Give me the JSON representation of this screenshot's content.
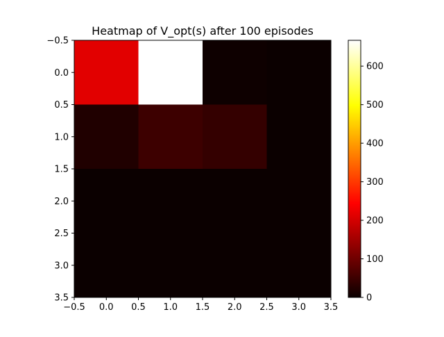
{
  "chart_data": {
    "type": "heatmap",
    "title": "Heatmap of V_opt(s) after 100 episodes",
    "xlabel": "",
    "ylabel": "",
    "x_ticks": [
      "−0.5",
      "0.0",
      "0.5",
      "1.0",
      "1.5",
      "2.0",
      "2.5",
      "3.0",
      "3.5"
    ],
    "y_ticks": [
      "−0.5",
      "0.0",
      "0.5",
      "1.0",
      "1.5",
      "2.0",
      "2.5",
      "3.0",
      "3.5"
    ],
    "xlim": [
      -0.5,
      3.5
    ],
    "ylim": [
      3.5,
      -0.5
    ],
    "values": [
      [
        206,
        667,
        3,
        0
      ],
      [
        20,
        48,
        40,
        0
      ],
      [
        0,
        0,
        0,
        0
      ],
      [
        0,
        0,
        0,
        0
      ]
    ],
    "colormap": "hot",
    "colorbar": {
      "min": 0,
      "max": 667,
      "ticks": [
        "0",
        "100",
        "200",
        "300",
        "400",
        "500",
        "600"
      ],
      "tick_values": [
        0,
        100,
        200,
        300,
        400,
        500,
        600
      ]
    },
    "grid": false
  }
}
